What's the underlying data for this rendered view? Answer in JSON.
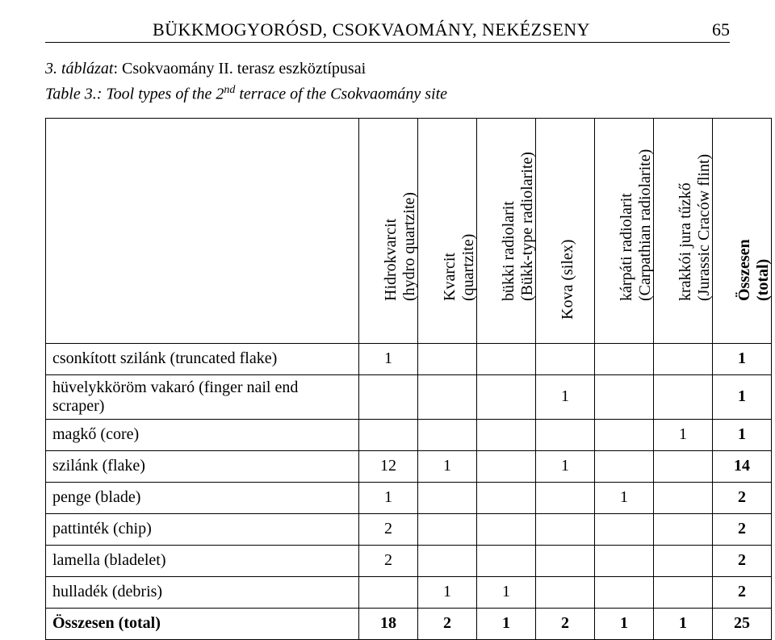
{
  "header": {
    "title": "BÜKKMOGYORÓSD, CSOKVAOMÁNY, NEKÉZSENY",
    "page_number": "65"
  },
  "caption": {
    "label": "3. táblázat",
    "text_hu": ": Csokvaomány II. terasz eszköztípusai",
    "table_label_en": "Table 3.",
    "text_en_prefix": ": Tool types of the 2",
    "text_en_sup": "nd",
    "text_en_suffix": " terrace of the Csokvaomány site"
  },
  "table": {
    "columns": [
      {
        "line1": "Hidrokvarcit",
        "line2": "(hydro quartzite)",
        "bold": false
      },
      {
        "line1": "Kvarcit",
        "line2": "(quartzite)",
        "bold": false
      },
      {
        "line1": "bükki radiolarit",
        "line2": "(Bükk-type radiolarite)",
        "bold": false
      },
      {
        "line1": "Kova (silex)",
        "line2": "",
        "bold": false
      },
      {
        "line1": "kárpáti radiolarit",
        "line2": "(Carpathian radiolarite)",
        "bold": false
      },
      {
        "line1": "krakkói jura tűzkő",
        "line2": "(Jurassic Craców flint)",
        "bold": false
      },
      {
        "line1": "Összesen",
        "line2": "(total)",
        "bold": true
      }
    ],
    "rows": [
      {
        "label": "csonkított szilánk (truncated flake)",
        "cells": [
          "1",
          "",
          "",
          "",
          "",
          "",
          "1"
        ],
        "bold": false
      },
      {
        "label": "hüvelykköröm vakaró (finger nail end scraper)",
        "cells": [
          "",
          "",
          "",
          "1",
          "",
          "",
          "1"
        ],
        "bold": false
      },
      {
        "label": "magkő (core)",
        "cells": [
          "",
          "",
          "",
          "",
          "",
          "1",
          "1"
        ],
        "bold": false
      },
      {
        "label": "szilánk (flake)",
        "cells": [
          "12",
          "1",
          "",
          "1",
          "",
          "",
          "14"
        ],
        "bold": false
      },
      {
        "label": "penge (blade)",
        "cells": [
          "1",
          "",
          "",
          "",
          "1",
          "",
          "2"
        ],
        "bold": false
      },
      {
        "label": "pattinték (chip)",
        "cells": [
          "2",
          "",
          "",
          "",
          "",
          "",
          "2"
        ],
        "bold": false
      },
      {
        "label": "lamella (bladelet)",
        "cells": [
          "2",
          "",
          "",
          "",
          "",
          "",
          "2"
        ],
        "bold": false
      },
      {
        "label": "hulladék (debris)",
        "cells": [
          "",
          "1",
          "1",
          "",
          "",
          "",
          "2"
        ],
        "bold": false
      },
      {
        "label": "Összesen (total)",
        "cells": [
          "18",
          "2",
          "1",
          "2",
          "1",
          "1",
          "25"
        ],
        "bold": true
      }
    ]
  }
}
